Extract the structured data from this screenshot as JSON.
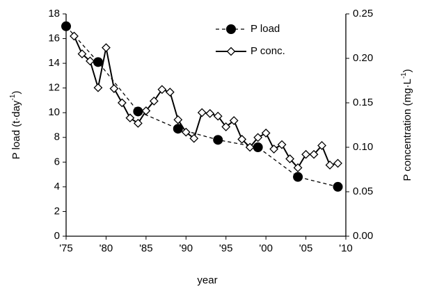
{
  "chart_data": {
    "type": "line",
    "x_label": "year",
    "y_label": {
      "text": "P load (t·day",
      "sup": "-1",
      "end": ")"
    },
    "y2_label": {
      "text": "P concentration (mg·L",
      "sup": "-1",
      "end": ")"
    },
    "xlim": [
      1975,
      2010
    ],
    "xticks": [
      {
        "value": 1975,
        "label": "'75"
      },
      {
        "value": 1980,
        "label": "'80"
      },
      {
        "value": 1985,
        "label": "'85"
      },
      {
        "value": 1990,
        "label": "'90"
      },
      {
        "value": 1995,
        "label": "'95"
      },
      {
        "value": 2000,
        "label": "'00"
      },
      {
        "value": 2005,
        "label": "'05"
      },
      {
        "value": 2010,
        "label": "'10"
      }
    ],
    "ylim": [
      0,
      18
    ],
    "yticks": [
      0,
      2,
      4,
      6,
      8,
      10,
      12,
      14,
      16,
      18
    ],
    "y2lim": [
      0,
      0.25
    ],
    "y2ticks": [
      {
        "value": 0,
        "label": "0.00"
      },
      {
        "value": 0.05,
        "label": "0.05"
      },
      {
        "value": 0.1,
        "label": "0.10"
      },
      {
        "value": 0.15,
        "label": "0.15"
      },
      {
        "value": 0.2,
        "label": "0.20"
      },
      {
        "value": 0.25,
        "label": "0.25"
      }
    ],
    "grid": false,
    "legend": "top",
    "series": [
      {
        "name": "P load",
        "color": "#000000",
        "dash": true,
        "marker": "circle",
        "x": [
          1975,
          1979,
          1984,
          1989,
          1994,
          1999,
          2004,
          2009
        ],
        "values": [
          17.0,
          14.1,
          10.1,
          8.7,
          7.8,
          7.2,
          4.8,
          4.0
        ]
      },
      {
        "name": "P conc.",
        "color": "#000000",
        "dash": false,
        "marker": "diamond",
        "axis": "y2",
        "x": [
          1976,
          1977,
          1978,
          1979,
          1980,
          1981,
          1982,
          1983,
          1984,
          1985,
          1986,
          1987,
          1988,
          1989,
          1990,
          1991,
          1992,
          1993,
          1994,
          1995,
          1996,
          1997,
          1998,
          1999,
          2000,
          2001,
          2002,
          2003,
          2004,
          2005,
          2006,
          2007,
          2008,
          2009
        ],
        "values": [
          0.225,
          0.205,
          0.197,
          0.167,
          0.212,
          0.166,
          0.15,
          0.133,
          0.127,
          0.141,
          0.152,
          0.165,
          0.162,
          0.131,
          0.117,
          0.11,
          0.139,
          0.138,
          0.135,
          0.123,
          0.13,
          0.109,
          0.1,
          0.111,
          0.116,
          0.098,
          0.103,
          0.087,
          0.077,
          0.092,
          0.092,
          0.102,
          0.08,
          0.082
        ]
      }
    ]
  }
}
